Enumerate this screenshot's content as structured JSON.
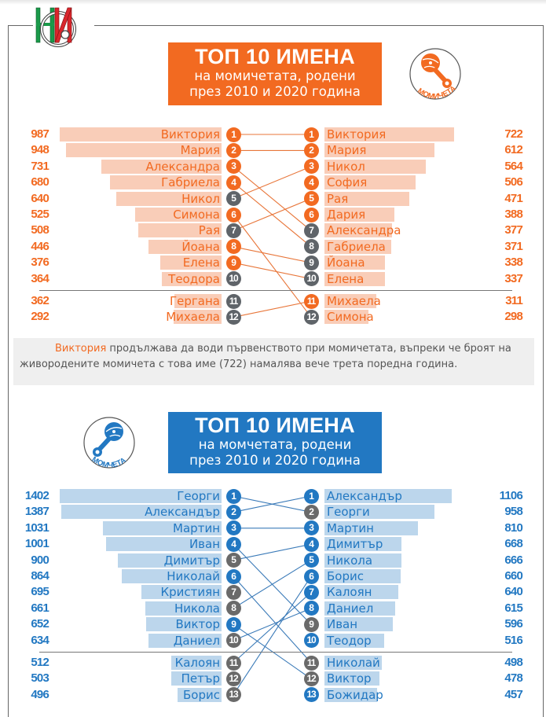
{
  "logo": {
    "label": "НСИ"
  },
  "girls": {
    "banner": {
      "title": "ТОП 10 ИМЕНА",
      "line1": "на момичетата, родени",
      "line2": "през 2010 и 2020 година"
    },
    "badge_label": "МОМИЧЕТА",
    "colors": {
      "accent": "#f26a21",
      "bar": "#f9cdb8",
      "gray": "#5f6469",
      "line": "#e8763a"
    }
  },
  "note": {
    "highlight": "Виктория",
    "text": " продължава да води първенството при момичетата, въпреки че броят на живородените момичета с това име (722) намалява вече трета поредна година."
  },
  "boys": {
    "banner": {
      "title": "ТОП 10 ИМЕНА",
      "line1": "на момчетата, родени",
      "line2": "през 2010 и 2020 година"
    },
    "badge_label": "МОМЧЕТА",
    "colors": {
      "accent": "#2278c2",
      "bar": "#bcd6ec",
      "gray": "#6a6a6a",
      "line": "#3a7ab8"
    }
  },
  "chart_data": [
    {
      "type": "table",
      "title": "ТОП 10 ИМЕНА на момичетата, родени през 2010 и 2020 година",
      "left_year": 2010,
      "right_year": 2020,
      "left": [
        {
          "rank": 1,
          "name": "Виктория",
          "value": 987,
          "in_both_top10": true
        },
        {
          "rank": 2,
          "name": "Мария",
          "value": 948,
          "in_both_top10": true
        },
        {
          "rank": 3,
          "name": "Александра",
          "value": 731,
          "in_both_top10": true
        },
        {
          "rank": 4,
          "name": "Габриела",
          "value": 680,
          "in_both_top10": true
        },
        {
          "rank": 5,
          "name": "Никол",
          "value": 640,
          "in_both_top10": false
        },
        {
          "rank": 6,
          "name": "Симона",
          "value": 525,
          "in_both_top10": true
        },
        {
          "rank": 7,
          "name": "Рая",
          "value": 508,
          "in_both_top10": false
        },
        {
          "rank": 8,
          "name": "Йоана",
          "value": 446,
          "in_both_top10": true
        },
        {
          "rank": 9,
          "name": "Елена",
          "value": 376,
          "in_both_top10": true
        },
        {
          "rank": 10,
          "name": "Теодора",
          "value": 364,
          "in_both_top10": false
        },
        {
          "rank": 11,
          "name": "Гергана",
          "value": 362,
          "in_both_top10": false
        },
        {
          "rank": 12,
          "name": "Михаела",
          "value": 292,
          "in_both_top10": false
        }
      ],
      "right": [
        {
          "rank": 1,
          "name": "Виктория",
          "value": 722,
          "in_both_top10": true
        },
        {
          "rank": 2,
          "name": "Мария",
          "value": 612,
          "in_both_top10": true
        },
        {
          "rank": 3,
          "name": "Никол",
          "value": 564,
          "in_both_top10": true
        },
        {
          "rank": 4,
          "name": "София",
          "value": 506,
          "in_both_top10": true
        },
        {
          "rank": 5,
          "name": "Рая",
          "value": 471,
          "in_both_top10": true
        },
        {
          "rank": 6,
          "name": "Дария",
          "value": 388,
          "in_both_top10": true
        },
        {
          "rank": 7,
          "name": "Александра",
          "value": 377,
          "in_both_top10": false
        },
        {
          "rank": 8,
          "name": "Габриела",
          "value": 371,
          "in_both_top10": false
        },
        {
          "rank": 9,
          "name": "Йоана",
          "value": 338,
          "in_both_top10": false
        },
        {
          "rank": 10,
          "name": "Елена",
          "value": 337,
          "in_both_top10": false
        },
        {
          "rank": 11,
          "name": "Михаела",
          "value": 311,
          "in_both_top10": true
        },
        {
          "rank": 12,
          "name": "Симона",
          "value": 298,
          "in_both_top10": false
        }
      ],
      "links": [
        [
          1,
          1
        ],
        [
          2,
          2
        ],
        [
          3,
          7
        ],
        [
          4,
          8
        ],
        [
          5,
          3
        ],
        [
          6,
          12
        ],
        [
          7,
          5
        ],
        [
          8,
          9
        ],
        [
          9,
          10
        ],
        [
          12,
          11
        ]
      ],
      "separator_after_rank": 10
    },
    {
      "type": "table",
      "title": "ТОП 10 ИМЕНА на момчетата, родени през 2010 и 2020 година",
      "left_year": 2010,
      "right_year": 2020,
      "left": [
        {
          "rank": 1,
          "name": "Георги",
          "value": 1402,
          "in_both_top10": true
        },
        {
          "rank": 2,
          "name": "Александър",
          "value": 1387,
          "in_both_top10": true
        },
        {
          "rank": 3,
          "name": "Мартин",
          "value": 1031,
          "in_both_top10": true
        },
        {
          "rank": 4,
          "name": "Иван",
          "value": 1001,
          "in_both_top10": true
        },
        {
          "rank": 5,
          "name": "Димитър",
          "value": 900,
          "in_both_top10": false
        },
        {
          "rank": 6,
          "name": "Николай",
          "value": 864,
          "in_both_top10": true
        },
        {
          "rank": 7,
          "name": "Кристиян",
          "value": 695,
          "in_both_top10": false
        },
        {
          "rank": 8,
          "name": "Никола",
          "value": 661,
          "in_both_top10": false
        },
        {
          "rank": 9,
          "name": "Виктор",
          "value": 652,
          "in_both_top10": true
        },
        {
          "rank": 10,
          "name": "Даниел",
          "value": 634,
          "in_both_top10": false
        },
        {
          "rank": 11,
          "name": "Калоян",
          "value": 512,
          "in_both_top10": false
        },
        {
          "rank": 12,
          "name": "Петър",
          "value": 503,
          "in_both_top10": false
        },
        {
          "rank": 13,
          "name": "Борис",
          "value": 496,
          "in_both_top10": false
        }
      ],
      "right": [
        {
          "rank": 1,
          "name": "Александър",
          "value": 1106,
          "in_both_top10": true
        },
        {
          "rank": 2,
          "name": "Георги",
          "value": 958,
          "in_both_top10": false
        },
        {
          "rank": 3,
          "name": "Мартин",
          "value": 810,
          "in_both_top10": true
        },
        {
          "rank": 4,
          "name": "Димитър",
          "value": 668,
          "in_both_top10": true
        },
        {
          "rank": 5,
          "name": "Никола",
          "value": 666,
          "in_both_top10": true
        },
        {
          "rank": 6,
          "name": "Борис",
          "value": 660,
          "in_both_top10": true
        },
        {
          "rank": 7,
          "name": "Калоян",
          "value": 640,
          "in_both_top10": true
        },
        {
          "rank": 8,
          "name": "Даниел",
          "value": 615,
          "in_both_top10": true
        },
        {
          "rank": 9,
          "name": "Иван",
          "value": 596,
          "in_both_top10": false
        },
        {
          "rank": 10,
          "name": "Теодор",
          "value": 516,
          "in_both_top10": true
        },
        {
          "rank": 11,
          "name": "Николай",
          "value": 498,
          "in_both_top10": false
        },
        {
          "rank": 12,
          "name": "Виктор",
          "value": 478,
          "in_both_top10": false
        },
        {
          "rank": 13,
          "name": "Божидар",
          "value": 457,
          "in_both_top10": true
        }
      ],
      "links": [
        [
          1,
          2
        ],
        [
          2,
          1
        ],
        [
          3,
          3
        ],
        [
          4,
          9
        ],
        [
          5,
          4
        ],
        [
          6,
          11
        ],
        [
          8,
          5
        ],
        [
          9,
          12
        ],
        [
          10,
          8
        ],
        [
          11,
          7
        ],
        [
          13,
          6
        ]
      ],
      "separator_after_rank": 10
    }
  ]
}
